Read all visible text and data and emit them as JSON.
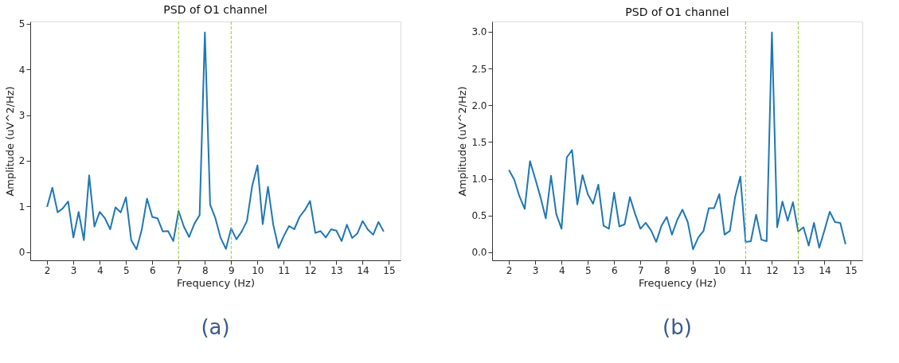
{
  "chart_data": [
    {
      "type": "line",
      "title": "PSD of O1 channel",
      "xlabel": "Frequency (Hz)",
      "ylabel": "Amplitude (uV^2/Hz)",
      "x": [
        2.0,
        2.2,
        2.4,
        2.6,
        2.8,
        3.0,
        3.2,
        3.4,
        3.6,
        3.8,
        4.0,
        4.2,
        4.4,
        4.6,
        4.8,
        5.0,
        5.2,
        5.4,
        5.6,
        5.8,
        6.0,
        6.2,
        6.4,
        6.6,
        6.8,
        7.0,
        7.2,
        7.4,
        7.6,
        7.8,
        8.0,
        8.2,
        8.4,
        8.6,
        8.8,
        9.0,
        9.2,
        9.4,
        9.6,
        9.8,
        10.0,
        10.2,
        10.4,
        10.6,
        10.8,
        11.0,
        11.2,
        11.4,
        11.6,
        11.8,
        12.0,
        12.2,
        12.4,
        12.6,
        12.8,
        13.0,
        13.2,
        13.4,
        13.6,
        13.8,
        14.0,
        14.2,
        14.4,
        14.6,
        14.8
      ],
      "series": [
        {
          "color": "#1f77b4",
          "values": [
            0.99,
            1.41,
            0.87,
            0.96,
            1.11,
            0.32,
            0.88,
            0.26,
            1.68,
            0.56,
            0.88,
            0.74,
            0.5,
            0.98,
            0.87,
            1.2,
            0.26,
            0.06,
            0.49,
            1.17,
            0.77,
            0.74,
            0.45,
            0.46,
            0.24,
            0.9,
            0.56,
            0.33,
            0.62,
            0.81,
            4.81,
            1.04,
            0.74,
            0.31,
            0.07,
            0.52,
            0.28,
            0.45,
            0.68,
            1.45,
            1.9,
            0.61,
            1.43,
            0.6,
            0.09,
            0.35,
            0.57,
            0.5,
            0.77,
            0.92,
            1.12,
            0.42,
            0.46,
            0.32,
            0.5,
            0.47,
            0.24,
            0.6,
            0.31,
            0.41,
            0.68,
            0.49,
            0.38,
            0.66,
            0.45
          ]
        }
      ],
      "xlim": [
        1.36,
        15.44
      ],
      "xticks": [
        2,
        3,
        4,
        5,
        6,
        7,
        8,
        9,
        10,
        11,
        12,
        13,
        14,
        15
      ],
      "ylim": [
        -0.18,
        5.05
      ],
      "yticks": [
        0,
        1,
        2,
        3,
        4,
        5
      ],
      "ref_lines": [
        {
          "axis": "x",
          "value": 7,
          "color": "#9acd32",
          "line_style": "dashed"
        },
        {
          "axis": "x",
          "value": 9,
          "color": "#9acd32",
          "line_style": "dashed"
        }
      ],
      "marker": "none",
      "line_style": "solid",
      "annotations": [
        "(a)"
      ]
    },
    {
      "type": "line",
      "title": "PSD of O1 channel",
      "xlabel": "Frequency (Hz)",
      "ylabel": "Amplitude (uV^2/Hz)",
      "x": [
        2.0,
        2.2,
        2.4,
        2.6,
        2.8,
        3.0,
        3.2,
        3.4,
        3.6,
        3.8,
        4.0,
        4.2,
        4.4,
        4.6,
        4.8,
        5.0,
        5.2,
        5.4,
        5.6,
        5.8,
        6.0,
        6.2,
        6.4,
        6.6,
        6.8,
        7.0,
        7.2,
        7.4,
        7.6,
        7.8,
        8.0,
        8.2,
        8.4,
        8.6,
        8.8,
        9.0,
        9.2,
        9.4,
        9.6,
        9.8,
        10.0,
        10.2,
        10.4,
        10.6,
        10.8,
        11.0,
        11.2,
        11.4,
        11.6,
        11.8,
        12.0,
        12.2,
        12.4,
        12.6,
        12.8,
        13.0,
        13.2,
        13.4,
        13.6,
        13.8,
        14.0,
        14.2,
        14.4,
        14.6,
        14.8
      ],
      "series": [
        {
          "color": "#1f77b4",
          "values": [
            1.12,
            0.99,
            0.76,
            0.59,
            1.24,
            1.0,
            0.75,
            0.46,
            1.04,
            0.52,
            0.32,
            1.29,
            1.39,
            0.65,
            1.05,
            0.79,
            0.66,
            0.92,
            0.36,
            0.32,
            0.81,
            0.35,
            0.38,
            0.75,
            0.52,
            0.32,
            0.4,
            0.3,
            0.14,
            0.36,
            0.48,
            0.24,
            0.44,
            0.58,
            0.41,
            0.04,
            0.2,
            0.29,
            0.6,
            0.6,
            0.79,
            0.24,
            0.29,
            0.75,
            1.03,
            0.14,
            0.15,
            0.51,
            0.17,
            0.15,
            2.99,
            0.34,
            0.69,
            0.43,
            0.68,
            0.28,
            0.34,
            0.09,
            0.4,
            0.06,
            0.3,
            0.55,
            0.41,
            0.4,
            0.11
          ]
        }
      ],
      "xlim": [
        1.36,
        15.44
      ],
      "xticks": [
        2,
        3,
        4,
        5,
        6,
        7,
        8,
        9,
        10,
        11,
        12,
        13,
        14,
        15
      ],
      "ylim": [
        -0.11,
        3.14
      ],
      "yticks": [
        {
          "value": 0,
          "label": "0.0"
        },
        {
          "value": 0.5,
          "label": "0.5"
        },
        {
          "value": 1,
          "label": "1.0"
        },
        {
          "value": 1.5,
          "label": "1.5"
        },
        {
          "value": 2,
          "label": "2.0"
        },
        {
          "value": 2.5,
          "label": "2.5"
        },
        {
          "value": 3,
          "label": "3.0"
        }
      ],
      "ref_lines": [
        {
          "axis": "x",
          "value": 11,
          "color": "#9acd32",
          "line_style": "dashed"
        },
        {
          "axis": "x",
          "value": 13,
          "color": "#9acd32",
          "line_style": "dashed"
        }
      ],
      "marker": "none",
      "line_style": "solid",
      "annotations": [
        "(b)"
      ]
    }
  ]
}
